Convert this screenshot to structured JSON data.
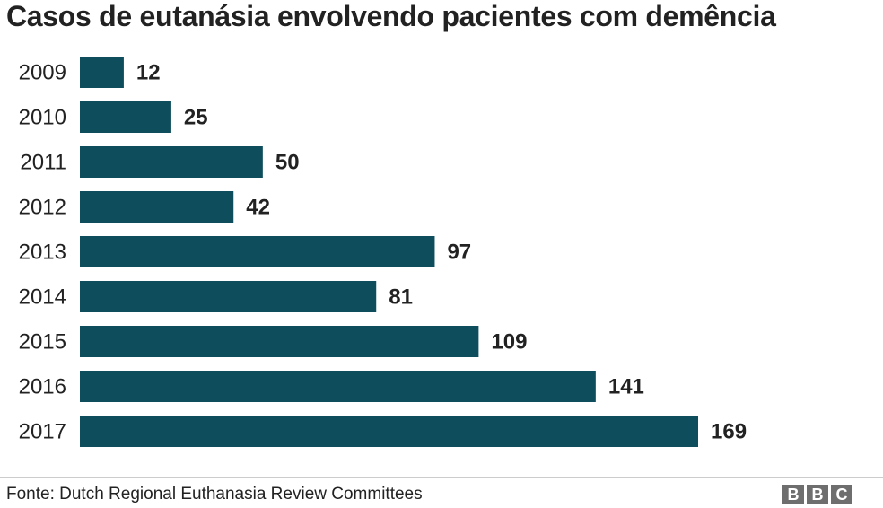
{
  "chart_data": {
    "type": "bar",
    "orientation": "horizontal",
    "title": "Casos de eutanásia envolvendo pacientes com demência",
    "categories": [
      "2009",
      "2010",
      "2011",
      "2012",
      "2013",
      "2014",
      "2015",
      "2016",
      "2017"
    ],
    "values": [
      12,
      25,
      50,
      42,
      97,
      81,
      109,
      141,
      169
    ],
    "bar_color": "#0e4e5c",
    "xlim": [
      0,
      169
    ],
    "grid": false,
    "legend": "none"
  },
  "footer": {
    "source": "Fonte: Dutch Regional Euthanasia Review Committees",
    "logo": [
      "B",
      "B",
      "C"
    ]
  }
}
